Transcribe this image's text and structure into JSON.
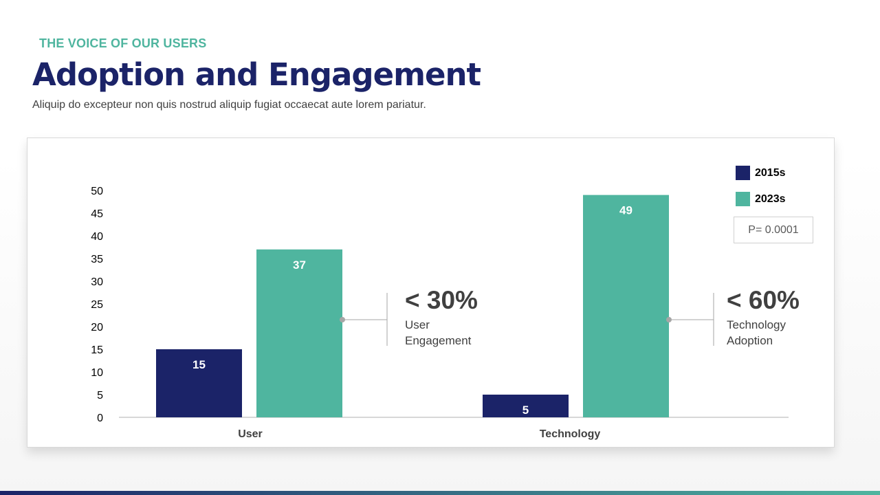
{
  "header": {
    "eyebrow": "THE VOICE OF OUR USERS",
    "title": "Adoption and Engagement",
    "subtitle": "Aliquip do excepteur non quis nostrud aliquip fugiat occaecat aute lorem pariatur."
  },
  "colors": {
    "series_2015": "#1b2368",
    "series_2023": "#4fb59f"
  },
  "chart_data": {
    "type": "bar",
    "categories": [
      "User",
      "Technology"
    ],
    "series": [
      {
        "name": "2015s",
        "values": [
          15,
          5
        ]
      },
      {
        "name": "2023s",
        "values": [
          37,
          49
        ]
      }
    ],
    "yticks": [
      "0",
      "5",
      "10",
      "15",
      "20",
      "25",
      "30",
      "35",
      "40",
      "45",
      "50"
    ],
    "ylim": [
      0,
      50
    ],
    "legend": "top-right",
    "grid": false,
    "annotation": "P= 0.0001"
  },
  "callouts": [
    {
      "value": "< 30%",
      "line1": "User",
      "line2": "Engagement"
    },
    {
      "value": "< 60%",
      "line1": "Technology",
      "line2": "Adoption"
    }
  ]
}
